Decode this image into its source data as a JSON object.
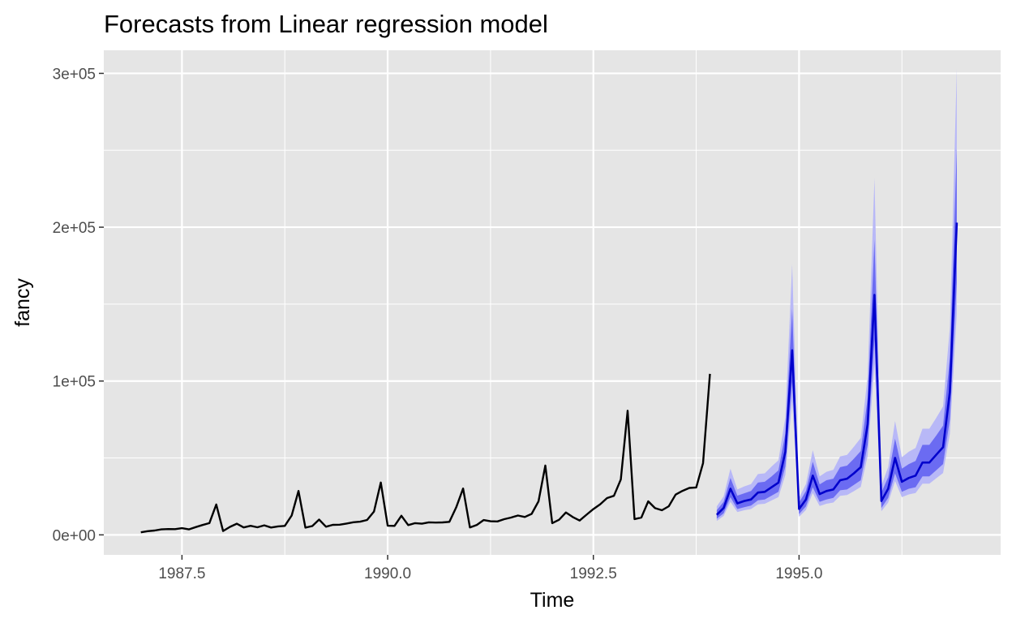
{
  "chart_data": {
    "type": "line",
    "title": "Forecasts from Linear regression model",
    "xlabel": "Time",
    "ylabel": "fancy",
    "xlim": [
      1986.55,
      1997.45
    ],
    "ylim": [
      -13000,
      315000
    ],
    "xticks": [
      {
        "value": 1987.5,
        "label": "1987.5"
      },
      {
        "value": 1990.0,
        "label": "1990.0"
      },
      {
        "value": 1992.5,
        "label": "1992.5"
      },
      {
        "value": 1995.0,
        "label": "1995.0"
      }
    ],
    "yticks": [
      {
        "value": 0,
        "label": "0e+00"
      },
      {
        "value": 100000,
        "label": "1e+05"
      },
      {
        "value": 200000,
        "label": "2e+05"
      },
      {
        "value": 300000,
        "label": "3e+05"
      }
    ],
    "grid": true,
    "legend": "none",
    "colors": {
      "panel": "#e5e5e5",
      "grid": "#ffffff",
      "observed": "#000000",
      "forecast_mean": "#0000cc",
      "band80": "#6b6bf2",
      "band95": "#b8b8f7"
    },
    "observed": {
      "start": 1987.0,
      "frequency": 12,
      "values": [
        1664,
        2397,
        2840,
        3547,
        3753,
        3714,
        4349,
        3566,
        5022,
        6423,
        7600,
        19756,
        2499,
        5198,
        7225,
        4806,
        5900,
        4951,
        6179,
        4752,
        5496,
        5835,
        12600,
        28541,
        4717,
        5702,
        9957,
        5304,
        6492,
        6630,
        7349,
        8176,
        8573,
        9690,
        15151,
        34061,
        5921,
        5814,
        12421,
        6369,
        7609,
        7224,
        8121,
        7979,
        8093,
        8476,
        17878,
        30114,
        4826,
        6470,
        9638,
        8821,
        8722,
        10209,
        11276,
        12552,
        11637,
        13606,
        21822,
        45060,
        7615,
        9849,
        14558,
        11587,
        9332,
        13082,
        16732,
        19888,
        23933,
        25391,
        36024,
        80721,
        10243,
        11266,
        21826,
        17357,
        15997,
        18601,
        26155,
        28586,
        30505,
        30821,
        46634,
        104661
      ]
    },
    "forecast": {
      "start": 1994.0,
      "frequency": 12,
      "mean": [
        13000,
        17500,
        30000,
        20500,
        22000,
        23000,
        27500,
        28000,
        31000,
        34000,
        54000,
        120000,
        16800,
        23000,
        38500,
        26500,
        28500,
        29500,
        35500,
        36500,
        40000,
        44000,
        72000,
        156000,
        22000,
        30000,
        50000,
        34500,
        37000,
        38500,
        47000,
        47000,
        52000,
        57000,
        93000,
        203000
      ],
      "lo80": [
        10500,
        14000,
        24500,
        16800,
        18000,
        19000,
        22500,
        23000,
        25500,
        28000,
        44500,
        99000,
        13500,
        18500,
        31000,
        21500,
        23000,
        24000,
        29000,
        29500,
        32500,
        35500,
        58500,
        127000,
        17500,
        24000,
        40000,
        28000,
        30000,
        31000,
        38000,
        38000,
        42000,
        46000,
        75000,
        164000
      ],
      "hi80": [
        16000,
        21500,
        37000,
        25500,
        27000,
        28500,
        34000,
        34500,
        38000,
        42000,
        66000,
        147000,
        21000,
        28500,
        47500,
        32800,
        35500,
        36500,
        44000,
        45000,
        49500,
        54500,
        89000,
        192000,
        27500,
        37500,
        62500,
        43000,
        46000,
        48000,
        58500,
        58500,
        64500,
        71000,
        115000,
        251000
      ],
      "lo95": [
        9000,
        12300,
        21500,
        14800,
        16000,
        16800,
        19800,
        20200,
        22400,
        24600,
        39000,
        87000,
        11800,
        16200,
        27200,
        18800,
        20200,
        21000,
        25400,
        25900,
        28400,
        31200,
        51400,
        111000,
        15300,
        21000,
        35000,
        24500,
        26300,
        27200,
        33300,
        33300,
        36800,
        40200,
        65700,
        143500
      ],
      "hi95": [
        18500,
        25000,
        43000,
        29500,
        31500,
        33000,
        39500,
        40000,
        44500,
        48500,
        76500,
        176000,
        24200,
        33000,
        55000,
        38000,
        41000,
        42300,
        51000,
        52000,
        57300,
        63000,
        103000,
        232000,
        32000,
        44000,
        74000,
        50500,
        54000,
        56500,
        69000,
        69000,
        76000,
        83500,
        135000,
        303000
      ]
    }
  }
}
